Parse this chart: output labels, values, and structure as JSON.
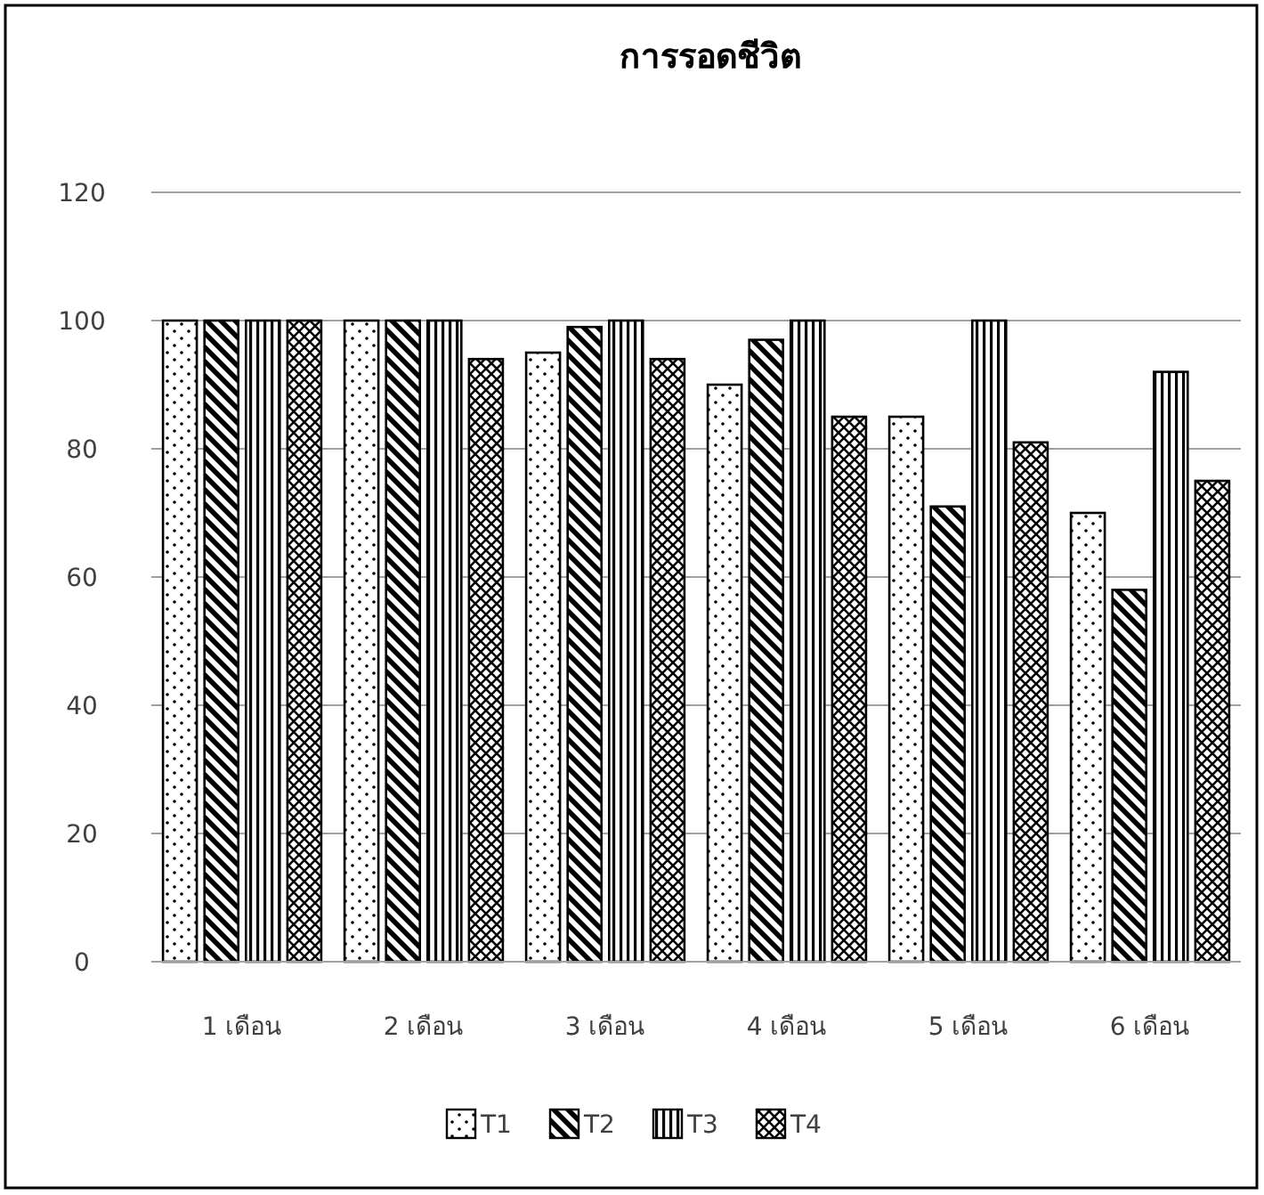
{
  "chart_data": {
    "type": "bar",
    "title": "การรอดชีวิต",
    "categories": [
      "1 เดือน",
      "2 เดือน",
      "3 เดือน",
      "4 เดือน",
      "5 เดือน",
      "6 เดือน"
    ],
    "series": [
      {
        "name": "T1",
        "color": "#000000",
        "values": [
          100,
          100,
          95,
          90,
          85,
          70
        ]
      },
      {
        "name": "T2",
        "color": "#000000",
        "values": [
          100,
          100,
          99,
          97,
          71,
          58
        ]
      },
      {
        "name": "T3",
        "color": "#000000",
        "values": [
          100,
          100,
          100,
          100,
          100,
          92
        ]
      },
      {
        "name": "T4",
        "color": "#000000",
        "values": [
          100,
          94,
          94,
          85,
          81,
          75
        ]
      }
    ],
    "ylim": [
      0,
      120
    ],
    "yticks": [
      0,
      20,
      40,
      60,
      80,
      100,
      120
    ],
    "grid": "y",
    "legend": "bottom"
  }
}
